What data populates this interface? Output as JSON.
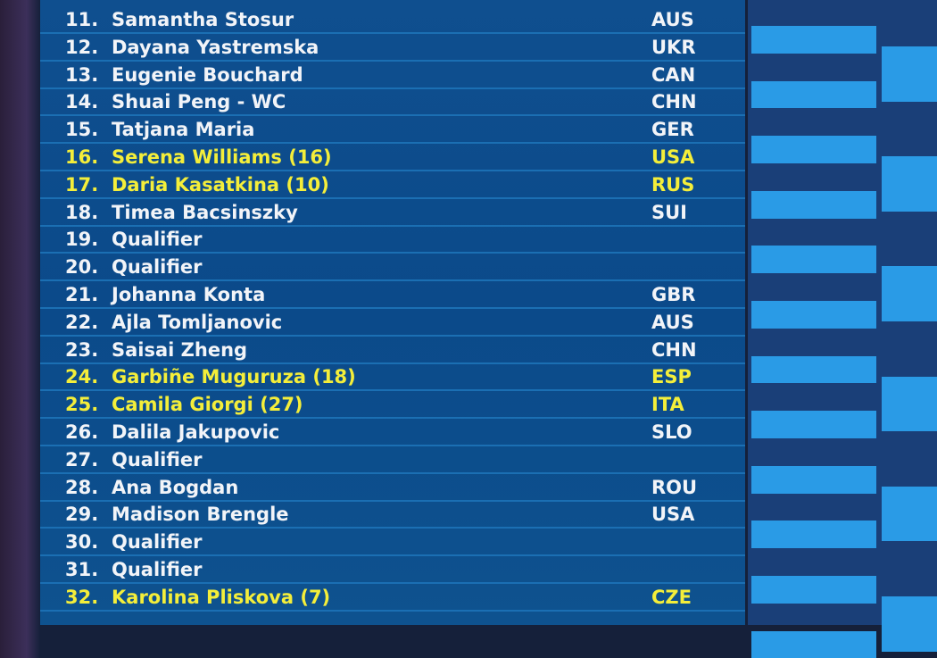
{
  "draw": {
    "rows": [
      {
        "num": "11.",
        "name": "Samantha Stosur",
        "country": "AUS"
      },
      {
        "num": "12.",
        "name": "Dayana Yastremska",
        "country": "UKR"
      },
      {
        "num": "13.",
        "name": "Eugenie Bouchard",
        "country": "CAN"
      },
      {
        "num": "14.",
        "name": "Shuai Peng - WC",
        "country": "CHN"
      },
      {
        "num": "15.",
        "name": "Tatjana Maria",
        "country": "GER"
      },
      {
        "num": "16.",
        "name": "Serena Williams (16)",
        "country": "USA",
        "seeded": true
      },
      {
        "num": "17.",
        "name": "Daria Kasatkina (10)",
        "country": "RUS",
        "seeded": true
      },
      {
        "num": "18.",
        "name": "Timea Bacsinszky",
        "country": "SUI"
      },
      {
        "num": "19.",
        "name": "Qualifier"
      },
      {
        "num": "20.",
        "name": "Qualifier"
      },
      {
        "num": "21.",
        "name": "Johanna Konta",
        "country": "GBR"
      },
      {
        "num": "22.",
        "name": "Ajla Tomljanovic",
        "country": "AUS"
      },
      {
        "num": "23.",
        "name": "Saisai Zheng",
        "country": "CHN"
      },
      {
        "num": "24.",
        "name": "Garbiñe Muguruza (18)",
        "country": "ESP",
        "seeded": true
      },
      {
        "num": "25.",
        "name": "Camila Giorgi (27)",
        "country": "ITA",
        "seeded": true
      },
      {
        "num": "26.",
        "name": "Dalila Jakupovic",
        "country": "SLO"
      },
      {
        "num": "27.",
        "name": "Qualifier"
      },
      {
        "num": "28.",
        "name": "Ana Bogdan",
        "country": "ROU"
      },
      {
        "num": "29.",
        "name": "Madison Brengle",
        "country": "USA"
      },
      {
        "num": "30.",
        "name": "Qualifier"
      },
      {
        "num": "31.",
        "name": "Qualifier"
      },
      {
        "num": "32.",
        "name": "Karolina Pliskova (7)",
        "country": "CZE",
        "seeded": true
      }
    ]
  }
}
